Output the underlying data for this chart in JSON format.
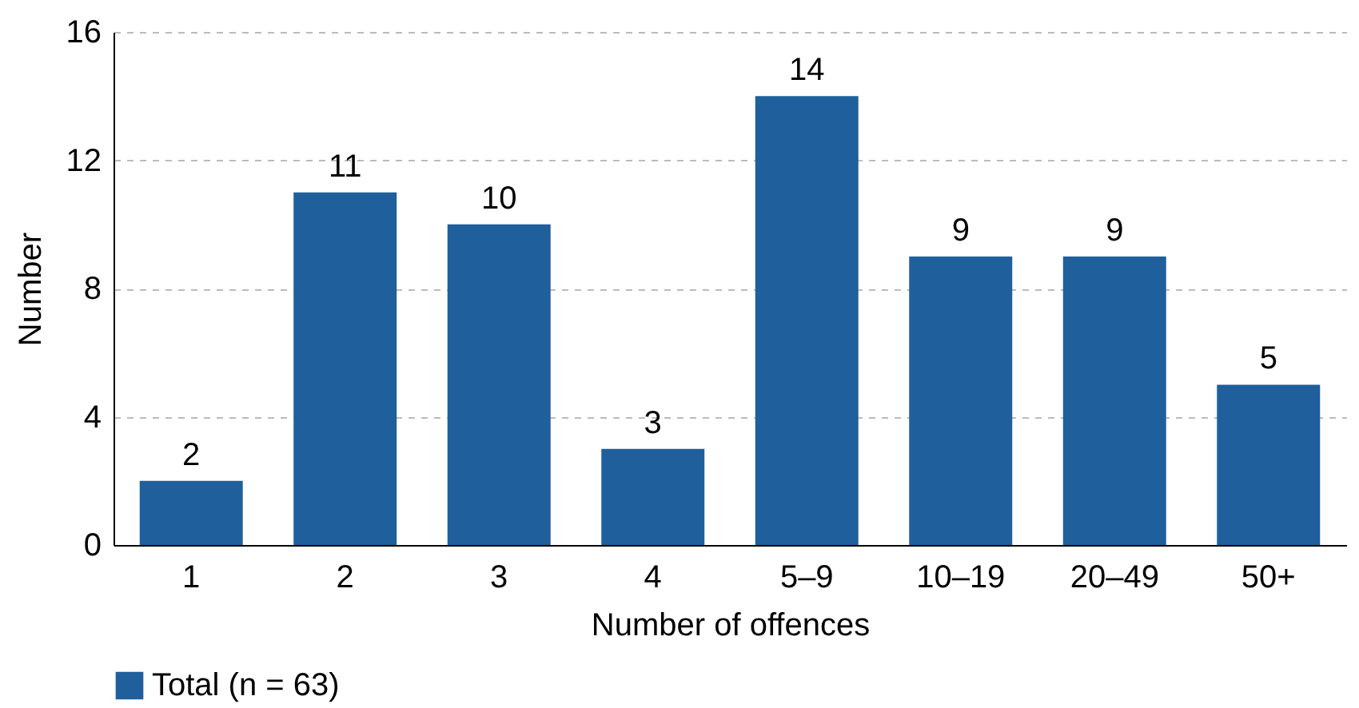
{
  "chart_data": {
    "type": "bar",
    "xlabel": "Number of offences",
    "ylabel": "Number",
    "categories": [
      "1",
      "2",
      "3",
      "4",
      "5–9",
      "10–19",
      "20–49",
      "50+"
    ],
    "series": [
      {
        "name": "Total (n = 63)",
        "color": "#1f5f9c",
        "values": [
          2,
          11,
          10,
          3,
          14,
          9,
          9,
          5
        ]
      }
    ],
    "ylim": [
      0,
      16
    ],
    "yticks": [
      0,
      4,
      8,
      12,
      16
    ],
    "grid": "y",
    "legend": "bottom",
    "data_labels": true
  }
}
